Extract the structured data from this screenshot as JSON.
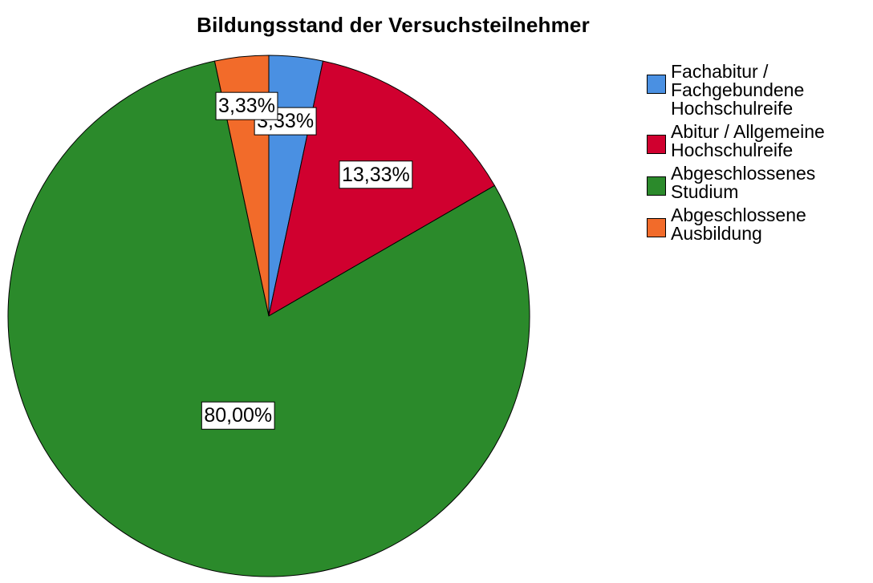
{
  "chart_data": {
    "type": "pie",
    "title": "Bildungsstand der Versuchsteilnehmer",
    "slices": [
      {
        "name": "Fachabitur / Fachgebundene Hochschulreife",
        "legend_lines": [
          "Fachabitur /",
          "Fachgebundene",
          "Hochschulreife"
        ],
        "value": 3.33,
        "label": "3,33%",
        "color": "#4a90e2"
      },
      {
        "name": "Abitur / Allgemeine Hochschulreife",
        "legend_lines": [
          "Abitur / Allgemeine",
          "Hochschulreife"
        ],
        "value": 13.33,
        "label": "13,33%",
        "color": "#d0002f"
      },
      {
        "name": "Abgeschlossenes Studium",
        "legend_lines": [
          "Abgeschlossenes",
          "Studium"
        ],
        "value": 80.0,
        "label": "80,00%",
        "color": "#2b8a2b"
      },
      {
        "name": "Abgeschlossene Ausbildung",
        "legend_lines": [
          "Abgeschlossene",
          "Ausbildung"
        ],
        "value": 3.33,
        "label": "3,33%",
        "color": "#f26b2a"
      }
    ],
    "start_angle": "12 o'clock",
    "direction": "clockwise",
    "legend_position": "right"
  }
}
